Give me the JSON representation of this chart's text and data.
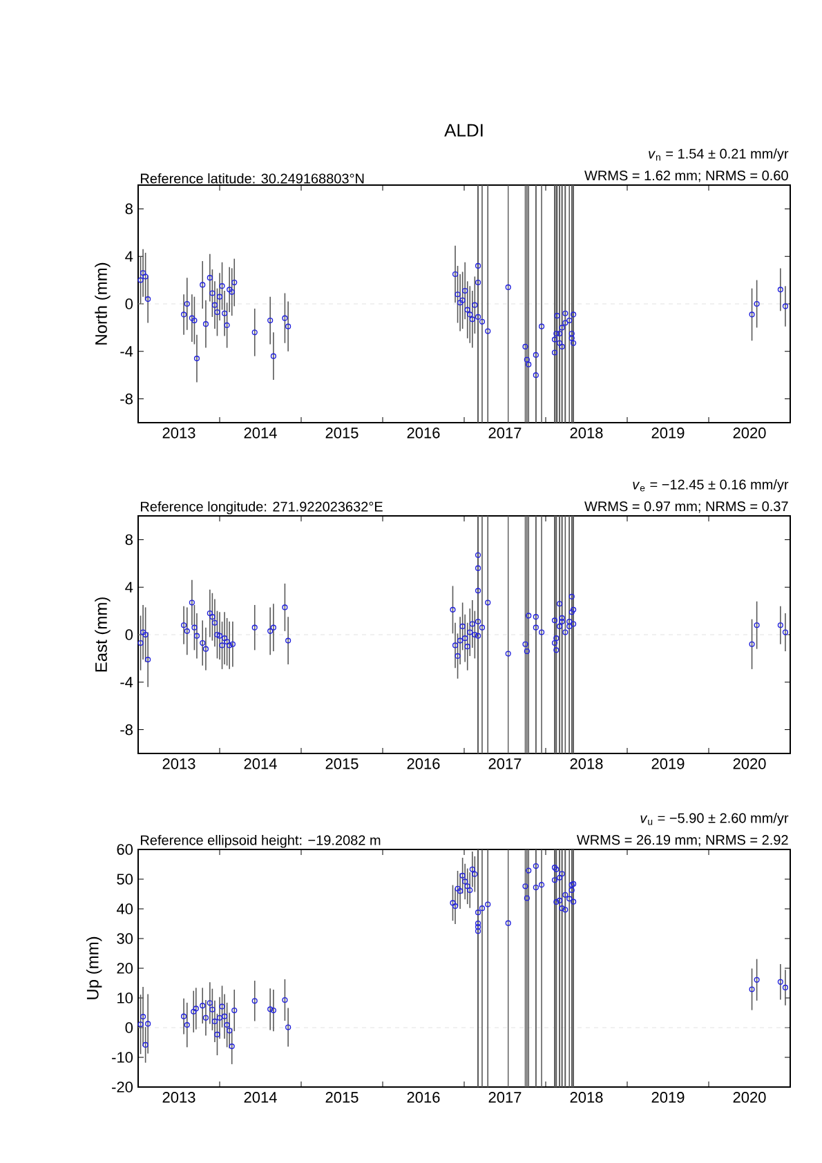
{
  "chart_data": [
    {
      "type": "scatter",
      "title": "ALDI",
      "subtitle": "Reference latitude: 30.249168803°N",
      "annotations": [
        "*v*$_{n}$ = 1.54 ± 0.21 mm/yr",
        "WRMS = 1.62 mm; NRMS = 0.60"
      ],
      "ylabel": "North (mm)",
      "marker": "circle",
      "xlim": [
        2013,
        2021
      ],
      "xticks": [
        {
          "value": 2013.5,
          "label": "2013"
        },
        {
          "value": 2014,
          "label": null
        },
        {
          "value": 2014.5,
          "label": "2014"
        },
        {
          "value": 2015,
          "label": null
        },
        {
          "value": 2015.5,
          "label": "2015"
        },
        {
          "value": 2016,
          "label": null
        },
        {
          "value": 2016.5,
          "label": "2016"
        },
        {
          "value": 2017,
          "label": null
        },
        {
          "value": 2017.5,
          "label": "2017"
        },
        {
          "value": 2018,
          "label": null
        },
        {
          "value": 2018.5,
          "label": "2018"
        },
        {
          "value": 2019,
          "label": null
        },
        {
          "value": 2019.5,
          "label": "2019"
        },
        {
          "value": 2020,
          "label": null
        },
        {
          "value": 2020.5,
          "label": "2020"
        }
      ],
      "ylim": [
        -10,
        10
      ],
      "yticks": [
        -8,
        -4,
        0,
        4,
        8
      ],
      "ref_lines": [
        {
          "axis": "y",
          "value": 0,
          "color": "#d9d9d9",
          "line_style": "dashed"
        }
      ],
      "series": [
        {
          "color": "#2222dd",
          "x": [
            2013.03,
            2013.06,
            2013.09,
            2013.12,
            2013.56,
            2013.6,
            2013.66,
            2013.69,
            2013.72,
            2013.79,
            2013.83,
            2013.88,
            2013.91,
            2013.94,
            2013.97,
            2014.0,
            2014.03,
            2014.06,
            2014.09,
            2014.12,
            2014.15,
            2014.18,
            2014.43,
            2014.62,
            2014.66,
            2014.8,
            2014.84,
            2016.92,
            2016.95,
            2016.98,
            2017.01,
            2017.04,
            2017.07,
            2017.1,
            2017.13,
            2017.17,
            2016.89,
            2017.17,
            2017.17,
            2017.22,
            2017.29,
            2017.54,
            2017.75,
            2017.77,
            2017.79,
            2017.88,
            2017.88,
            2017.95,
            2018.11,
            2018.11,
            2018.13,
            2018.14,
            2018.17,
            2018.17,
            2018.2,
            2018.2,
            2018.24,
            2018.24,
            2018.29,
            2018.32,
            2018.32,
            2018.34,
            2018.34,
            2020.53,
            2020.59,
            2020.88,
            2020.94
          ],
          "values": [
            2.0,
            2.6,
            2.3,
            0.4,
            -0.9,
            0.0,
            -1.2,
            -1.4,
            -4.6,
            1.6,
            -1.7,
            2.2,
            0.9,
            -0.1,
            -0.7,
            0.6,
            1.5,
            -0.8,
            -1.8,
            1.2,
            1.0,
            1.8,
            -2.4,
            -1.4,
            -4.4,
            -1.2,
            -1.9,
            0.8,
            0.1,
            0.3,
            1.1,
            -0.5,
            -0.9,
            -1.3,
            -0.1,
            3.2,
            2.5,
            1.8,
            -1.1,
            -1.5,
            -2.3,
            1.4,
            -3.6,
            -4.7,
            -5.1,
            -4.3,
            -6.0,
            -1.9,
            -3.0,
            -4.1,
            -2.5,
            -1.0,
            -3.3,
            -2.5,
            -2.0,
            -3.6,
            -0.8,
            -1.6,
            -1.4,
            -2.5,
            -2.9,
            -0.9,
            -3.3,
            -0.9,
            0.0,
            1.2,
            -0.2
          ],
          "errors": [
            2.0,
            2.0,
            2.0,
            2.0,
            1.7,
            2.2,
            2.0,
            2.0,
            2.0,
            2.0,
            2.0,
            2.0,
            2.0,
            2.0,
            2.0,
            2.0,
            2.0,
            1.9,
            1.9,
            1.9,
            2.0,
            2.0,
            2.0,
            2.0,
            2.0,
            2.1,
            2.1,
            2.4,
            2.4,
            2.4,
            2.4,
            2.4,
            2.4,
            2.4,
            2.4,
            [
              -10,
              10
            ],
            2.4,
            [
              -10,
              10
            ],
            [
              -10,
              10
            ],
            [
              -10,
              10
            ],
            [
              -10,
              10
            ],
            [
              -10,
              10
            ],
            [
              -10,
              10
            ],
            [
              -10,
              10
            ],
            [
              -10,
              10
            ],
            [
              -10,
              10
            ],
            [
              -10,
              10
            ],
            [
              -10,
              10
            ],
            [
              -10,
              10
            ],
            [
              -10,
              10
            ],
            [
              -10,
              10
            ],
            [
              -10,
              10
            ],
            [
              -10,
              10
            ],
            [
              -10,
              10
            ],
            [
              -10,
              10
            ],
            [
              -10,
              10
            ],
            [
              -10,
              10
            ],
            [
              -10,
              10
            ],
            [
              -10,
              10
            ],
            [
              -10,
              10
            ],
            [
              -10,
              10
            ],
            [
              -10,
              10
            ],
            [
              -10,
              10
            ],
            2.2,
            2.0,
            1.8,
            1.7
          ]
        }
      ]
    },
    {
      "type": "scatter",
      "subtitle": "Reference longitude: 271.922023632°E",
      "annotations": [
        "*v*$_{e}$ = −12.45 ± 0.16 mm/yr",
        "WRMS = 0.97 mm; NRMS = 0.37"
      ],
      "ylabel": "East (mm)",
      "marker": "circle",
      "xlim": [
        2013,
        2021
      ],
      "xticks": [
        {
          "value": 2013.5,
          "label": "2013"
        },
        {
          "value": 2014,
          "label": null
        },
        {
          "value": 2014.5,
          "label": "2014"
        },
        {
          "value": 2015,
          "label": null
        },
        {
          "value": 2015.5,
          "label": "2015"
        },
        {
          "value": 2016,
          "label": null
        },
        {
          "value": 2016.5,
          "label": "2016"
        },
        {
          "value": 2017,
          "label": null
        },
        {
          "value": 2017.5,
          "label": "2017"
        },
        {
          "value": 2018,
          "label": null
        },
        {
          "value": 2018.5,
          "label": "2018"
        },
        {
          "value": 2019,
          "label": null
        },
        {
          "value": 2019.5,
          "label": "2019"
        },
        {
          "value": 2020,
          "label": null
        },
        {
          "value": 2020.5,
          "label": "2020"
        }
      ],
      "ylim": [
        -10,
        10
      ],
      "yticks": [
        -8,
        -4,
        0,
        4,
        8
      ],
      "ref_lines": [
        {
          "axis": "y",
          "value": 0,
          "color": "#d9d9d9",
          "line_style": "dashed"
        }
      ],
      "series": [
        {
          "color": "#2222dd",
          "x": [
            2013.03,
            2013.06,
            2013.09,
            2013.12,
            2013.56,
            2013.6,
            2013.66,
            2013.69,
            2013.72,
            2013.79,
            2013.83,
            2013.88,
            2013.91,
            2013.94,
            2013.97,
            2014.0,
            2014.03,
            2014.06,
            2014.09,
            2014.12,
            2014.16,
            2014.43,
            2014.62,
            2014.66,
            2014.8,
            2014.84,
            2016.89,
            2016.92,
            2016.95,
            2016.98,
            2017.01,
            2017.04,
            2017.07,
            2017.1,
            2017.13,
            2017.17,
            2017.17,
            2017.17,
            2016.86,
            2017.17,
            2017.17,
            2017.22,
            2017.29,
            2017.54,
            2017.75,
            2017.77,
            2017.79,
            2017.88,
            2017.88,
            2017.95,
            2018.11,
            2018.11,
            2018.13,
            2018.13,
            2018.17,
            2018.17,
            2018.2,
            2018.2,
            2018.24,
            2018.29,
            2018.29,
            2018.32,
            2018.32,
            2018.34,
            2018.34,
            2020.53,
            2020.59,
            2020.88,
            2020.94
          ],
          "values": [
            -0.7,
            0.2,
            0.0,
            -2.1,
            0.8,
            0.3,
            2.7,
            0.6,
            -0.1,
            -0.7,
            -1.2,
            1.8,
            1.5,
            1.0,
            0.0,
            -0.1,
            -0.9,
            -0.3,
            -0.6,
            -0.9,
            -0.8,
            0.6,
            0.3,
            0.6,
            2.3,
            -0.5,
            -0.9,
            -1.8,
            -0.5,
            0.7,
            -0.3,
            -1.0,
            0.2,
            0.9,
            0.0,
            6.7,
            5.6,
            3.7,
            2.1,
            1.1,
            -0.1,
            0.6,
            2.7,
            -1.6,
            -0.8,
            -1.4,
            1.6,
            1.5,
            0.6,
            0.2,
            1.2,
            -0.7,
            -1.3,
            -0.3,
            2.6,
            0.7,
            1.4,
            1.1,
            0.2,
            1.1,
            0.7,
            3.2,
            1.9,
            2.1,
            0.9,
            -0.8,
            0.8,
            0.8,
            0.2
          ],
          "errors": [
            2.3,
            2.3,
            2.3,
            2.3,
            1.6,
            2.0,
            1.9,
            1.9,
            1.9,
            1.9,
            1.8,
            2.0,
            2.0,
            2.0,
            2.0,
            2.0,
            2.0,
            2.2,
            2.0,
            2.0,
            1.9,
            1.9,
            2.0,
            2.0,
            2.0,
            2.0,
            1.9,
            1.9,
            2.0,
            2.0,
            2.0,
            2.0,
            2.0,
            2.0,
            2.0,
            [
              -10,
              10
            ],
            [
              -10,
              10
            ],
            [
              -10,
              10
            ],
            2.0,
            [
              -10,
              10
            ],
            [
              -10,
              10
            ],
            [
              -10,
              10
            ],
            [
              -10,
              10
            ],
            [
              -10,
              10
            ],
            [
              -10,
              10
            ],
            [
              -10,
              10
            ],
            [
              -10,
              10
            ],
            [
              -10,
              10
            ],
            [
              -10,
              10
            ],
            [
              -10,
              10
            ],
            [
              -10,
              10
            ],
            [
              -10,
              10
            ],
            [
              -10,
              10
            ],
            [
              -10,
              10
            ],
            [
              -10,
              10
            ],
            [
              -10,
              10
            ],
            [
              -10,
              10
            ],
            [
              -10,
              10
            ],
            [
              -10,
              10
            ],
            [
              -10,
              10
            ],
            [
              -10,
              10
            ],
            [
              -10,
              10
            ],
            [
              -10,
              10
            ],
            [
              -10,
              10
            ],
            [
              -10,
              10
            ],
            2.1,
            2.0,
            1.6,
            1.6
          ]
        }
      ]
    },
    {
      "type": "scatter",
      "subtitle": "Reference ellipsoid height: −19.2082 m",
      "annotations": [
        "*v*$_{u}$ = −5.90 ± 2.60 mm/yr",
        "WRMS = 26.19 mm; NRMS = 2.92"
      ],
      "ylabel": "Up (mm)",
      "marker": "circle",
      "xlim": [
        2013,
        2021
      ],
      "xticks": [
        {
          "value": 2013.5,
          "label": "2013"
        },
        {
          "value": 2014,
          "label": null
        },
        {
          "value": 2014.5,
          "label": "2014"
        },
        {
          "value": 2015,
          "label": null
        },
        {
          "value": 2015.5,
          "label": "2015"
        },
        {
          "value": 2016,
          "label": null
        },
        {
          "value": 2016.5,
          "label": "2016"
        },
        {
          "value": 2017,
          "label": null
        },
        {
          "value": 2017.5,
          "label": "2017"
        },
        {
          "value": 2018,
          "label": null
        },
        {
          "value": 2018.5,
          "label": "2018"
        },
        {
          "value": 2019,
          "label": null
        },
        {
          "value": 2019.5,
          "label": "2019"
        },
        {
          "value": 2020,
          "label": null
        },
        {
          "value": 2020.5,
          "label": "2020"
        }
      ],
      "ylim": [
        -20,
        60
      ],
      "yticks": [
        -20,
        -10,
        0,
        10,
        20,
        30,
        40,
        50,
        60
      ],
      "ref_lines": [
        {
          "axis": "y",
          "value": 0,
          "color": "#d9d9d9",
          "line_style": "dashed"
        }
      ],
      "series": [
        {
          "color": "#2222dd",
          "x": [
            2013.03,
            2013.06,
            2013.09,
            2013.12,
            2013.56,
            2013.6,
            2013.68,
            2013.71,
            2013.79,
            2013.83,
            2013.88,
            2013.91,
            2013.94,
            2013.97,
            2014.0,
            2014.03,
            2014.06,
            2014.09,
            2014.12,
            2014.15,
            2014.18,
            2014.43,
            2014.62,
            2014.66,
            2014.8,
            2014.84,
            2016.86,
            2016.89,
            2016.92,
            2016.95,
            2016.98,
            2017.01,
            2017.04,
            2017.07,
            2017.1,
            2017.13,
            2017.17,
            2017.17,
            2017.17,
            2017.17,
            2017.22,
            2017.29,
            2017.54,
            2017.75,
            2017.77,
            2017.79,
            2017.88,
            2017.88,
            2017.95,
            2018.11,
            2018.11,
            2018.13,
            2018.13,
            2018.17,
            2018.17,
            2018.2,
            2018.2,
            2018.24,
            2018.24,
            2018.29,
            2018.32,
            2018.32,
            2018.34,
            2018.34,
            2020.53,
            2020.59,
            2020.88,
            2020.94
          ],
          "values": [
            1.1,
            3.7,
            -5.8,
            1.3,
            3.8,
            0.9,
            5.4,
            6.4,
            7.4,
            3.3,
            8.3,
            6.1,
            2.1,
            -2.3,
            3.3,
            7.1,
            3.8,
            0.9,
            -1.0,
            -6.3,
            5.8,
            9.0,
            6.2,
            5.8,
            9.3,
            0.1,
            42.0,
            40.9,
            46.8,
            46.0,
            51.2,
            49.2,
            47.6,
            46.3,
            53.3,
            51.7,
            38.8,
            35.1,
            33.9,
            32.5,
            40.2,
            41.5,
            35.2,
            47.6,
            43.6,
            52.9,
            54.4,
            47.2,
            48.1,
            53.9,
            49.7,
            42.3,
            53.3,
            50.5,
            42.8,
            51.8,
            40.2,
            44.7,
            39.7,
            43.4,
            48.1,
            46.3,
            48.4,
            42.4,
            12.9,
            16.1,
            15.4,
            13.5
          ],
          "errors": [
            10,
            10,
            6,
            10,
            6,
            7.5,
            7,
            7,
            6,
            6,
            7,
            7,
            7,
            7,
            7,
            7,
            7.5,
            7.5,
            6,
            6,
            7,
            6.8,
            7,
            7,
            7,
            6.5,
            6,
            6,
            6,
            6,
            6,
            6,
            6,
            6,
            6,
            6,
            [
              -20,
              60
            ],
            [
              -20,
              60
            ],
            [
              -20,
              60
            ],
            [
              -20,
              60
            ],
            [
              -20,
              60
            ],
            [
              -20,
              60
            ],
            [
              -20,
              60
            ],
            [
              -20,
              60
            ],
            [
              -20,
              60
            ],
            [
              -20,
              60
            ],
            [
              -20,
              60
            ],
            [
              -20,
              60
            ],
            [
              -20,
              60
            ],
            [
              -20,
              60
            ],
            [
              -20,
              60
            ],
            [
              -20,
              60
            ],
            [
              -20,
              60
            ],
            [
              -20,
              60
            ],
            [
              -20,
              60
            ],
            [
              -20,
              60
            ],
            [
              -20,
              60
            ],
            [
              -20,
              60
            ],
            [
              -20,
              60
            ],
            [
              -20,
              60
            ],
            [
              -20,
              60
            ],
            [
              -20,
              60
            ],
            [
              -20,
              60
            ],
            [
              -20,
              60
            ],
            7,
            7,
            6,
            6
          ]
        }
      ]
    }
  ]
}
